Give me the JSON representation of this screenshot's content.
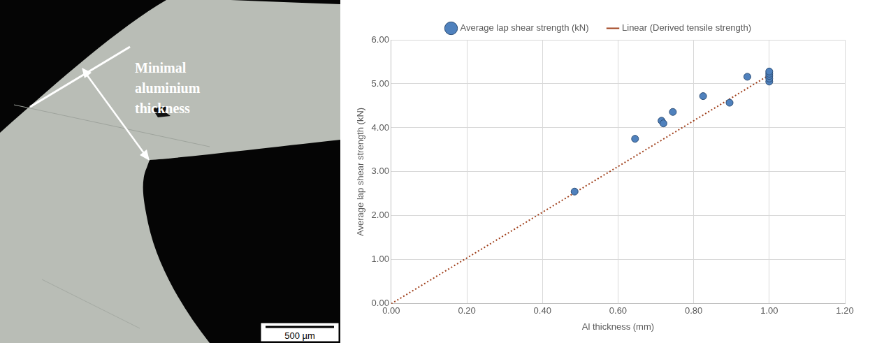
{
  "micrograph": {
    "annotation": "Minimal aluminium thickness",
    "scale_bar": "500 µm"
  },
  "chart_data": {
    "type": "scatter",
    "x_label": "Al thickness (mm)",
    "y_label": "Average lap shear strength (kN)",
    "series": [
      {
        "name": "Average lap shear strength (kN)",
        "type": "scatter",
        "color": "#4f81bd",
        "marker": "circle",
        "x": [
          0.485,
          0.645,
          0.715,
          0.72,
          0.745,
          0.825,
          0.895,
          0.942,
          1.0,
          1.0,
          1.0,
          1.0,
          1.0
        ],
        "values": [
          2.55,
          3.75,
          4.16,
          4.1,
          4.36,
          4.72,
          4.57,
          5.16,
          5.05,
          5.12,
          5.18,
          5.23,
          5.28
        ]
      },
      {
        "name": "Linear (Derived tensile strength)",
        "type": "line",
        "color": "#a0401c",
        "line_style": "dotted",
        "x": [
          0,
          1.0
        ],
        "values": [
          0,
          5.2
        ]
      }
    ],
    "xlim": [
      0,
      1.2
    ],
    "xticks": [
      {
        "value": 0,
        "label": "0.00"
      },
      {
        "value": 0.2,
        "label": "0.20"
      },
      {
        "value": 0.4,
        "label": "0.40"
      },
      {
        "value": 0.6,
        "label": "0.60"
      },
      {
        "value": 0.8,
        "label": "0.80"
      },
      {
        "value": 1.0,
        "label": "1.00"
      },
      {
        "value": 1.2,
        "label": "1.20"
      }
    ],
    "ylim": [
      0,
      6
    ],
    "yticks": [
      {
        "value": 0,
        "label": "0.00"
      },
      {
        "value": 1,
        "label": "1.00"
      },
      {
        "value": 2,
        "label": "2.00"
      },
      {
        "value": 3,
        "label": "3.00"
      },
      {
        "value": 4,
        "label": "4.00"
      },
      {
        "value": 5,
        "label": "5.00"
      },
      {
        "value": 6,
        "label": "6.00"
      }
    ],
    "grid": true,
    "legend": "top"
  }
}
